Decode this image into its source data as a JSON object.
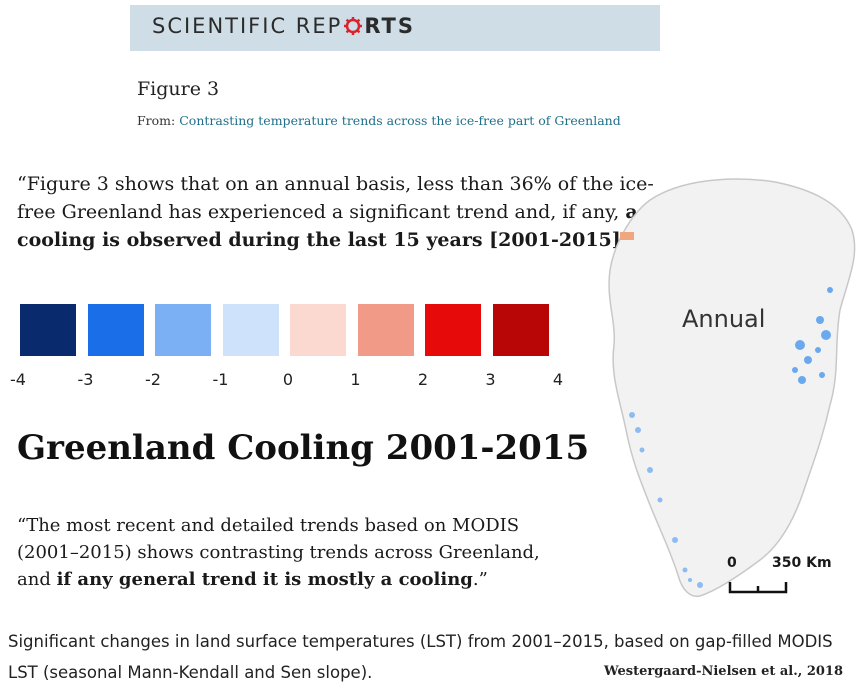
{
  "banner": {
    "journal_part1": "SCIENTIFIC REP",
    "journal_part2": "RTS"
  },
  "figure": {
    "title": "Figure 3",
    "from_prefix": "From:",
    "from_link": "Contrasting temperature trends across the ice-free part of Greenland"
  },
  "quote1": {
    "normal": "“Figure 3 shows that on an annual basis, less than 36% of the ice-free Greenland has experienced a significant trend and, if any, ",
    "bold": "a cooling is observed during the last 15 years [2001-2015]",
    "end": ".”"
  },
  "legend": {
    "colors": [
      "#0a2a6e",
      "#1a6fe8",
      "#7bb0f5",
      "#cfe2fb",
      "#fbd9d0",
      "#f19a88",
      "#e60a0a",
      "#b80606"
    ],
    "ticks": [
      "-4",
      "-3",
      "-2",
      "-1",
      "0",
      "1",
      "2",
      "3",
      "4"
    ]
  },
  "headline": "Greenland Cooling 2001-2015",
  "quote2": {
    "normal": "“The most recent and detailed trends based on MODIS (2001–2015) shows contrasting trends across Greenland, and ",
    "bold": "if any general trend it is mostly a cooling",
    "end": ".”"
  },
  "map": {
    "label": "Annual",
    "scale_zero": "0",
    "scale_dist": "350 Km",
    "colors": {
      "ice": "#f2f2f2",
      "cooling": "#6aa9ee",
      "warming": "#f0a780"
    }
  },
  "caption": "Significant changes in land surface temperatures (LST) from 2001–2015, based on gap-filled MODIS LST (seasonal Mann-Kendall and Sen slope).",
  "credit": "Westergaard-Nielsen et al., 2018"
}
